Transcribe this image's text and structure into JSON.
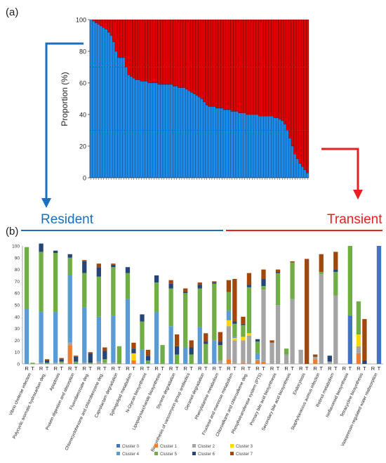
{
  "panel_a_label": "(a)",
  "panel_b_label": "(b)",
  "resident_label": "Resident",
  "transient_label": "Transient",
  "colors": {
    "resident_blue": "#1f8ae6",
    "transient_red": "#e00000",
    "resident_line": "#1a6fbf",
    "transient_line": "#e82020",
    "arrow_blue": "#1a6fbf",
    "arrow_red": "#e82020"
  },
  "chart_data": [
    {
      "type": "bar",
      "stacked": true,
      "ylabel": "Proportion (%)",
      "ylim": [
        0,
        100
      ],
      "yticks": [
        "0",
        "20",
        "40",
        "60",
        "80",
        "100"
      ],
      "reference_lines": [
        30,
        70
      ],
      "series": [
        {
          "role": "lower",
          "color": "#1f8ae6",
          "values": [
            100,
            99,
            98,
            97,
            96,
            95,
            94,
            92,
            90,
            86,
            80,
            76,
            76,
            76,
            70,
            65,
            64,
            63,
            62,
            62,
            61,
            61,
            61,
            60,
            60,
            60,
            60,
            59,
            59,
            59,
            59,
            59,
            59,
            58,
            58,
            57,
            57,
            57,
            56,
            55,
            54,
            53,
            52,
            51,
            50,
            48,
            46,
            45,
            45,
            45,
            44,
            44,
            44,
            43,
            43,
            43,
            42,
            42,
            42,
            41,
            41,
            41,
            40,
            40,
            40,
            40,
            40,
            39,
            39,
            39,
            39,
            39,
            39,
            38,
            38,
            37,
            36,
            34,
            30,
            25,
            20,
            15,
            12,
            9,
            7,
            5,
            3
          ]
        },
        {
          "role": "upper",
          "color": "#e00000",
          "values": "remainder to 100"
        }
      ]
    },
    {
      "type": "bar",
      "stacked": true,
      "ylim": [
        0,
        100
      ],
      "yticks": [
        "0",
        "10",
        "20",
        "30",
        "40",
        "50",
        "60",
        "70",
        "80",
        "90",
        "100"
      ],
      "pair_labels": [
        "R",
        "T"
      ],
      "categories": [
        "Vibrio cholerae infection",
        "Polycyclic aromatic hydrocarbon deg.",
        "Apoptosis",
        "Protein digestion and absorption",
        "Fluorobenzoate deg.",
        "Chlorocyclohexane and chlorobenzene deg.",
        "Caprolactam degradation",
        "Sphingolipid metabolism",
        "N-Glycan biosynthesis",
        "Lipopolysaccharide biosynthesis",
        "Styrene degradation",
        "Biosynthesis of vancomycin group antibiotics",
        "Geraniol degradation",
        "Phenylalanine metabolism",
        "Fructose and mannose metabolism",
        "Chloroalkane and chloroalkene deg.",
        "Phosphotransferase system (PTS)",
        "Primary bile acid biosynthesis",
        "Secondary bile acid biosynthesis",
        "Endocytosis",
        "Staphylococcus aureus infection",
        "Retinol metabolism",
        "Isoflavonoid biosynthesis",
        "Tetracycline biosynthesis",
        "Vasopressin-regulated water reabsorption"
      ],
      "series_names": [
        "Cluster 0",
        "Cluster 1",
        "Cluster 2",
        "Cluster 3",
        "Cluster 4",
        "Cluster 5",
        "Cluster 6",
        "Cluster 7"
      ],
      "series_colors": [
        "#4472c4",
        "#ed7d31",
        "#a5a5a5",
        "#ffd700",
        "#5b9bd5",
        "#70ad47",
        "#264478",
        "#9e480e"
      ],
      "bars": [
        [
          [
            0,
            0,
            0,
            0,
            47,
            52,
            0,
            0
          ],
          [
            0,
            0,
            0,
            0,
            0,
            1,
            0,
            0
          ]
        ],
        [
          [
            0,
            0,
            1,
            0,
            43,
            51,
            7,
            0
          ],
          [
            0,
            0,
            0,
            0,
            0,
            1,
            2,
            1
          ]
        ],
        [
          [
            0,
            0,
            1,
            0,
            43,
            50,
            2,
            0
          ],
          [
            0,
            0,
            1,
            0,
            0,
            1,
            2,
            1
          ]
        ],
        [
          [
            0,
            16,
            2,
            0,
            57,
            15,
            3,
            0
          ],
          [
            0,
            0,
            0,
            0,
            0,
            2,
            4,
            1
          ]
        ],
        [
          [
            0,
            0,
            1,
            0,
            47,
            29,
            10,
            1
          ],
          [
            0,
            0,
            0,
            0,
            0,
            1,
            8,
            1
          ]
        ],
        [
          [
            0,
            0,
            2,
            0,
            38,
            34,
            8,
            3
          ],
          [
            0,
            0,
            1,
            0,
            0,
            3,
            7,
            3
          ]
        ],
        [
          [
            0,
            0,
            1,
            0,
            40,
            41,
            2,
            1
          ],
          [
            0,
            0,
            0,
            0,
            0,
            15,
            0,
            0
          ]
        ],
        [
          [
            0,
            0,
            0,
            0,
            55,
            22,
            5,
            0
          ],
          [
            0,
            3,
            0,
            6,
            0,
            0,
            4,
            5
          ]
        ],
        [
          [
            0,
            0,
            0,
            0,
            12,
            24,
            6,
            0
          ],
          [
            0,
            0,
            0,
            0,
            0,
            3,
            4,
            5
          ]
        ],
        [
          [
            0,
            0,
            0,
            0,
            44,
            25,
            6,
            0
          ],
          [
            0,
            0,
            0,
            0,
            0,
            16,
            0,
            0
          ]
        ],
        [
          [
            0,
            0,
            0,
            0,
            32,
            32,
            4,
            3
          ],
          [
            0,
            0,
            0,
            0,
            0,
            8,
            7,
            10
          ]
        ],
        [
          [
            0,
            0,
            0,
            0,
            14,
            46,
            1,
            3
          ],
          [
            0,
            0,
            0,
            0,
            0,
            8,
            6,
            6
          ]
        ],
        [
          [
            0,
            0,
            0,
            0,
            31,
            33,
            3,
            2
          ],
          [
            0,
            0,
            0,
            0,
            0,
            17,
            2,
            7
          ]
        ],
        [
          [
            0,
            0,
            0,
            0,
            20,
            48,
            1,
            1
          ],
          [
            0,
            0,
            3,
            0,
            0,
            13,
            3,
            8
          ]
        ],
        [
          [
            0,
            4,
            28,
            5,
            8,
            16,
            0,
            10
          ],
          [
            0,
            0,
            20,
            2,
            1,
            11,
            2,
            36
          ]
        ],
        [
          [
            0,
            1,
            19,
            3,
            0,
            10,
            1,
            6
          ],
          [
            0,
            0,
            24,
            2,
            0,
            39,
            2,
            10
          ]
        ],
        [
          [
            0,
            3,
            1,
            0,
            5,
            10,
            2,
            0
          ],
          [
            0,
            2,
            61,
            0,
            0,
            3,
            6,
            8
          ]
        ],
        [
          [
            0,
            0,
            18,
            0,
            0,
            0,
            0,
            2
          ],
          [
            0,
            0,
            50,
            0,
            0,
            27,
            1,
            2
          ]
        ],
        [
          [
            0,
            0,
            8,
            0,
            0,
            5,
            0,
            0
          ],
          [
            0,
            0,
            55,
            0,
            0,
            31,
            0,
            1
          ]
        ],
        [
          [
            0,
            0,
            12,
            0,
            0,
            0,
            0,
            0
          ],
          [
            0,
            0,
            0,
            0,
            0,
            0,
            0,
            89
          ]
        ],
        [
          [
            0,
            4,
            2,
            0,
            0,
            0,
            0,
            2
          ],
          [
            0,
            0,
            76,
            0,
            0,
            2,
            0,
            15
          ]
        ],
        [
          [
            0,
            0,
            2,
            0,
            0,
            0,
            5,
            0
          ],
          [
            0,
            0,
            58,
            0,
            0,
            20,
            2,
            15
          ]
        ],
        [
          [
            0,
            0,
            0,
            0,
            0,
            0,
            0,
            0
          ],
          [
            41,
            0,
            0,
            0,
            0,
            59,
            0,
            0
          ]
        ],
        [
          [
            0,
            9,
            6,
            10,
            0,
            28,
            0,
            0
          ],
          [
            0,
            0,
            0,
            0,
            0,
            0,
            3,
            35
          ]
        ],
        [
          [
            0,
            0,
            0,
            0,
            0,
            0,
            0,
            0
          ],
          [
            100,
            0,
            0,
            0,
            0,
            0,
            0,
            0
          ]
        ]
      ]
    }
  ]
}
